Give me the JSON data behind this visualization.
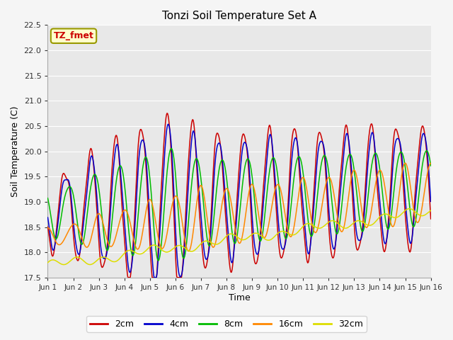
{
  "title": "Tonzi Soil Temperature Set A",
  "xlabel": "Time",
  "ylabel": "Soil Temperature (C)",
  "ylim": [
    17.5,
    22.5
  ],
  "yticks": [
    17.5,
    18.0,
    18.5,
    19.0,
    19.5,
    20.0,
    20.5,
    21.0,
    21.5,
    22.0,
    22.5
  ],
  "xtick_labels": [
    "Jun 1",
    "Jun 2",
    "Jun 3",
    "Jun 4",
    "Jun 5",
    "Jun 6",
    "Jun 7",
    "Jun 8",
    "Jun 9",
    "Jun 10",
    "Jun 11",
    "Jun 12",
    "Jun 13",
    "Jun 14",
    "Jun 15",
    "Jun 16"
  ],
  "colors": {
    "2cm": "#cc0000",
    "4cm": "#0000cc",
    "8cm": "#00bb00",
    "16cm": "#ff8800",
    "32cm": "#dddd00"
  },
  "legend_label": "TZ_fmet",
  "legend_bg": "#ffffcc",
  "legend_border": "#999900",
  "plot_bg": "#e8e8e8",
  "fig_bg": "#f5f5f5",
  "grid_color": "#ffffff"
}
